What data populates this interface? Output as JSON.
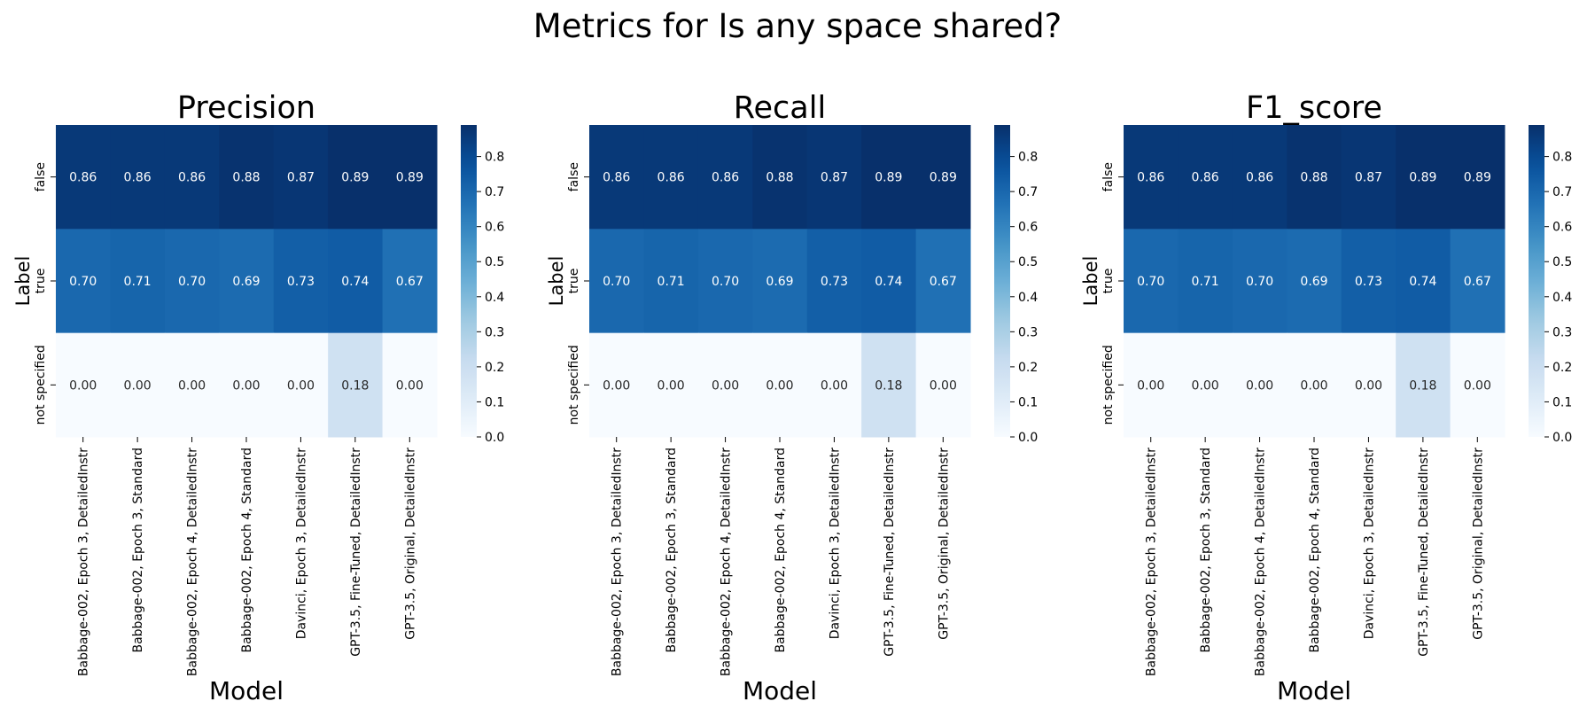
{
  "title": "Metrics for Is any space shared?",
  "chart_data": [
    {
      "type": "heatmap",
      "title": "Precision",
      "xlabel": "Model",
      "ylabel": "Label",
      "x_categories": [
        "Babbage-002, Epoch 3, DetailedInstr",
        "Babbage-002, Epoch 3, Standard",
        "Babbage-002, Epoch 4, DetailedInstr",
        "Babbage-002, Epoch 4, Standard",
        "Davinci, Epoch 3, DetailedInstr",
        "GPT-3.5, Fine-Tuned, DetailedInstr",
        "GPT-3.5, Original, DetailedInstr"
      ],
      "y_categories": [
        "false",
        "true",
        "not specified"
      ],
      "values": [
        [
          0.86,
          0.86,
          0.86,
          0.88,
          0.87,
          0.89,
          0.89
        ],
        [
          0.7,
          0.71,
          0.7,
          0.69,
          0.73,
          0.74,
          0.67
        ],
        [
          0.0,
          0.0,
          0.0,
          0.0,
          0.0,
          0.18,
          0.0
        ]
      ],
      "colorbar_ticks": [
        "0.0",
        "0.1",
        "0.2",
        "0.3",
        "0.4",
        "0.5",
        "0.6",
        "0.7",
        "0.8"
      ],
      "vmin": 0.0,
      "vmax": 0.89,
      "colormap": "Blues"
    },
    {
      "type": "heatmap",
      "title": "Recall",
      "xlabel": "Model",
      "ylabel": "Label",
      "x_categories": [
        "Babbage-002, Epoch 3, DetailedInstr",
        "Babbage-002, Epoch 3, Standard",
        "Babbage-002, Epoch 4, DetailedInstr",
        "Babbage-002, Epoch 4, Standard",
        "Davinci, Epoch 3, DetailedInstr",
        "GPT-3.5, Fine-Tuned, DetailedInstr",
        "GPT-3.5, Original, DetailedInstr"
      ],
      "y_categories": [
        "false",
        "true",
        "not specified"
      ],
      "values": [
        [
          0.86,
          0.86,
          0.86,
          0.88,
          0.87,
          0.89,
          0.89
        ],
        [
          0.7,
          0.71,
          0.7,
          0.69,
          0.73,
          0.74,
          0.67
        ],
        [
          0.0,
          0.0,
          0.0,
          0.0,
          0.0,
          0.18,
          0.0
        ]
      ],
      "colorbar_ticks": [
        "0.0",
        "0.1",
        "0.2",
        "0.3",
        "0.4",
        "0.5",
        "0.6",
        "0.7",
        "0.8"
      ],
      "vmin": 0.0,
      "vmax": 0.89,
      "colormap": "Blues"
    },
    {
      "type": "heatmap",
      "title": "F1_score",
      "xlabel": "Model",
      "ylabel": "Label",
      "x_categories": [
        "Babbage-002, Epoch 3, DetailedInstr",
        "Babbage-002, Epoch 3, Standard",
        "Babbage-002, Epoch 4, DetailedInstr",
        "Babbage-002, Epoch 4, Standard",
        "Davinci, Epoch 3, DetailedInstr",
        "GPT-3.5, Fine-Tuned, DetailedInstr",
        "GPT-3.5, Original, DetailedInstr"
      ],
      "y_categories": [
        "false",
        "true",
        "not specified"
      ],
      "values": [
        [
          0.86,
          0.86,
          0.86,
          0.88,
          0.87,
          0.89,
          0.89
        ],
        [
          0.7,
          0.71,
          0.7,
          0.69,
          0.73,
          0.74,
          0.67
        ],
        [
          0.0,
          0.0,
          0.0,
          0.0,
          0.0,
          0.18,
          0.0
        ]
      ],
      "colorbar_ticks": [
        "0.0",
        "0.1",
        "0.2",
        "0.3",
        "0.4",
        "0.5",
        "0.6",
        "0.7",
        "0.8"
      ],
      "vmin": 0.0,
      "vmax": 0.89,
      "colormap": "Blues"
    }
  ]
}
